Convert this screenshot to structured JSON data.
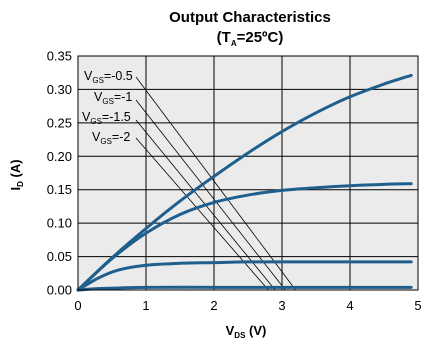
{
  "chart_data": {
    "type": "line",
    "title": "Output Characteristics",
    "subtitle": {
      "prefix": "(T",
      "sub": "A",
      "suffix": "=25ºC)"
    },
    "xlabel": {
      "main": "V",
      "sub": "DS",
      "unit": " (V)"
    },
    "ylabel": {
      "main": "I",
      "sub": "D",
      "unit": " (A)"
    },
    "xlim": [
      0,
      5
    ],
    "ylim": [
      0,
      0.35
    ],
    "xticks": [
      0,
      1,
      2,
      3,
      4,
      5
    ],
    "xtick_labels": [
      "0",
      "1",
      "2",
      "3",
      "4",
      "5"
    ],
    "yticks": [
      0,
      0.05,
      0.1,
      0.15,
      0.2,
      0.25,
      0.3,
      0.35
    ],
    "ytick_labels": [
      "0.00",
      "0.05",
      "0.10",
      "0.15",
      "0.20",
      "0.25",
      "0.30",
      "0.35"
    ],
    "grid": true,
    "background": "#ebebeb",
    "line_color": "#1f5f8e",
    "legend": [
      {
        "main": "V",
        "sub": "GS",
        "value": "=-0.5"
      },
      {
        "main": "V",
        "sub": "GS",
        "value": "=-1"
      },
      {
        "main": "V",
        "sub": "GS",
        "value": "=-1.5"
      },
      {
        "main": "V",
        "sub": "GS",
        "value": "=-2"
      }
    ],
    "series": [
      {
        "x": [
          0,
          0.5,
          1,
          1.5,
          2,
          2.5,
          3,
          3.5,
          4,
          4.5,
          4.9
        ],
        "y": [
          0,
          0.048,
          0.092,
          0.133,
          0.17,
          0.205,
          0.237,
          0.265,
          0.289,
          0.308,
          0.321
        ]
      },
      {
        "x": [
          0,
          0.5,
          1,
          1.5,
          2,
          2.5,
          3,
          3.5,
          4,
          4.5,
          4.9
        ],
        "y": [
          0,
          0.047,
          0.085,
          0.113,
          0.131,
          0.142,
          0.149,
          0.153,
          0.156,
          0.158,
          0.159
        ]
      },
      {
        "x": [
          0,
          0.3,
          0.6,
          1,
          1.5,
          2,
          2.5,
          3,
          3.5,
          4,
          4.9
        ],
        "y": [
          0,
          0.018,
          0.03,
          0.037,
          0.04,
          0.041,
          0.042,
          0.042,
          0.042,
          0.042,
          0.042
        ]
      },
      {
        "x": [
          0,
          0.3,
          0.6,
          1,
          2,
          3,
          4,
          4.9
        ],
        "y": [
          0,
          0.002,
          0.003,
          0.004,
          0.004,
          0.004,
          0.004,
          0.004
        ]
      }
    ]
  }
}
